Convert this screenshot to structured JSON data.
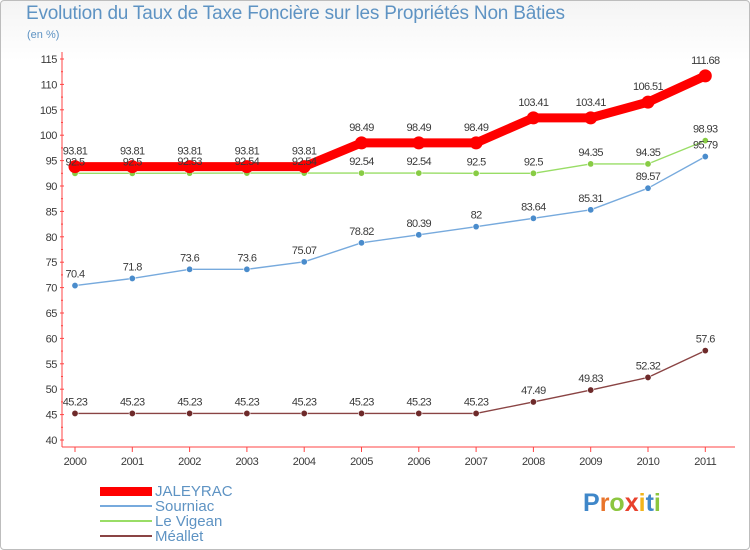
{
  "header": {
    "title": "Evolution du Taux de Taxe Foncière sur les Propriétés Non Bâties",
    "subtitle": "(en %)"
  },
  "logo": {
    "text": "Proxiti",
    "letters": [
      {
        "ch": "P",
        "color": "#3f87c9"
      },
      {
        "ch": "r",
        "color": "#e9742b"
      },
      {
        "ch": "o",
        "color": "#8cc63f"
      },
      {
        "ch": "x",
        "color": "#e8412c"
      },
      {
        "ch": "i",
        "color": "#f2b41b"
      },
      {
        "ch": "t",
        "color": "#3f87c9"
      },
      {
        "ch": "i",
        "color": "#8cc63f"
      }
    ]
  },
  "chart_data": {
    "type": "line",
    "title": "Evolution du Taux de Taxe Foncière sur les Propriétés Non Bâties",
    "ylabel": "(en %)",
    "xlabel": "",
    "x": [
      "2000",
      "2001",
      "2002",
      "2003",
      "2004",
      "2005",
      "2006",
      "2007",
      "2008",
      "2009",
      "2010",
      "2011"
    ],
    "ylim": [
      40,
      115
    ],
    "yticks": [
      40,
      45,
      50,
      55,
      60,
      65,
      70,
      75,
      80,
      85,
      90,
      95,
      100,
      105,
      110,
      115
    ],
    "grid": false,
    "legend_position": "bottom-left",
    "series": [
      {
        "name": "JALEYRAC",
        "color": "#ff0000",
        "values": [
          93.81,
          93.81,
          93.81,
          93.81,
          93.81,
          98.49,
          98.49,
          98.49,
          103.41,
          103.41,
          106.51,
          111.68
        ],
        "labels": [
          "93.81",
          "93.81",
          "93.81",
          "93.81",
          "93.81",
          "98.49",
          "98.49",
          "98.49",
          "103.41",
          "103.41",
          "106.51",
          "111.68"
        ]
      },
      {
        "name": "Sourniac",
        "color": "#77aadd",
        "marker": "#4a8ccc",
        "values": [
          70.4,
          71.8,
          73.6,
          73.6,
          75.07,
          78.82,
          80.39,
          82,
          83.64,
          85.31,
          89.57,
          95.79
        ],
        "labels": [
          "70.4",
          "71.8",
          "73.6",
          "73.6",
          "75.07",
          "78.82",
          "80.39",
          "82",
          "83.64",
          "85.31",
          "89.57",
          "95.79"
        ]
      },
      {
        "name": "Le Vigean",
        "color": "#99dd66",
        "marker": "#88cc44",
        "values": [
          92.5,
          92.5,
          92.53,
          92.54,
          92.54,
          92.54,
          92.54,
          92.5,
          92.5,
          94.35,
          94.35,
          98.93
        ],
        "labels": [
          "92.5",
          "92.5",
          "92.53",
          "92.54",
          "92.54",
          "92.54",
          "92.54",
          "92.5",
          "92.5",
          "94.35",
          "94.35",
          "98.93"
        ]
      },
      {
        "name": "Méallet",
        "color": "#8a4444",
        "marker": "#6e2a2a",
        "values": [
          45.23,
          45.23,
          45.23,
          45.23,
          45.23,
          45.23,
          45.23,
          45.23,
          47.49,
          49.83,
          52.32,
          57.6
        ],
        "labels": [
          "45.23",
          "45.23",
          "45.23",
          "45.23",
          "45.23",
          "45.23",
          "45.23",
          "45.23",
          "47.49",
          "49.83",
          "52.32",
          "57.6"
        ]
      }
    ]
  }
}
